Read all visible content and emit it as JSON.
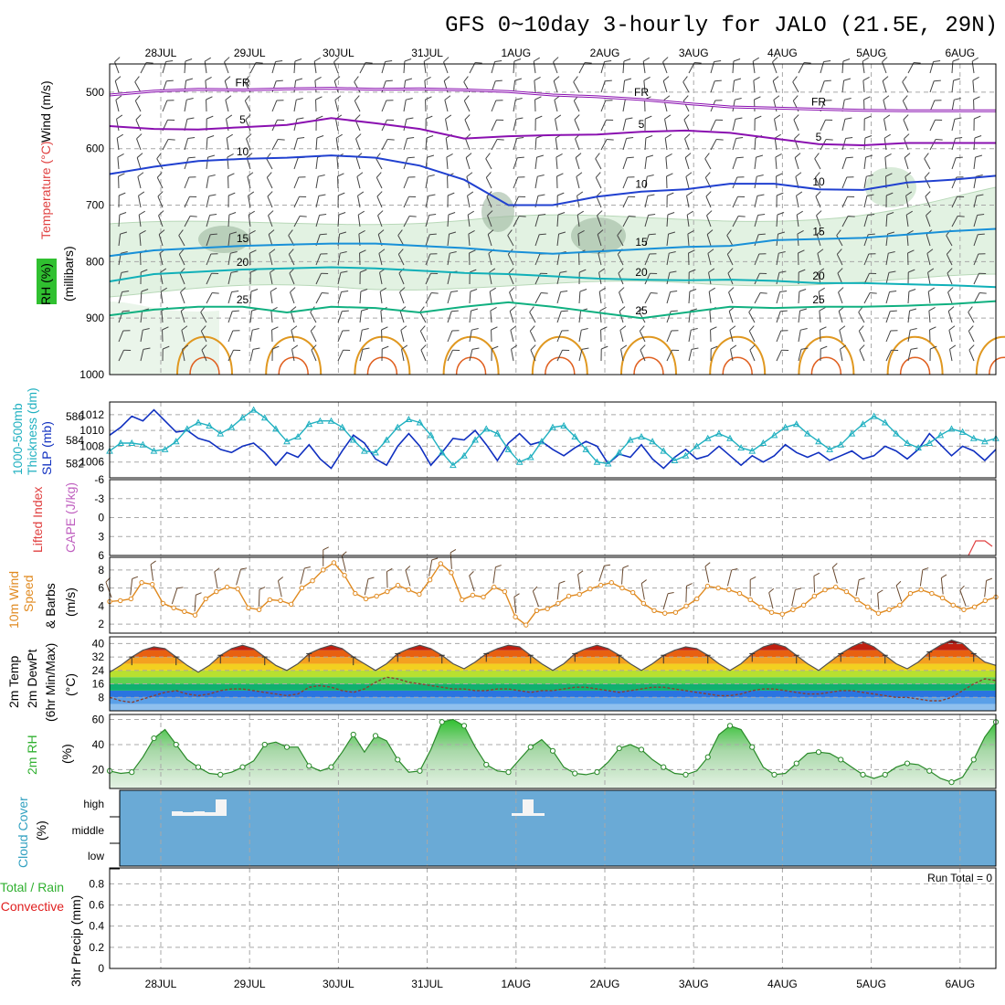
{
  "header": {
    "title": "GFS 0~10day 3-hourly for JALO (21.5E, 29N)"
  },
  "colors": {
    "temp_cold": "#8a10b0",
    "temp_10": "#2040d0",
    "temp_15": "#1890d8",
    "temp_20": "#10b0b8",
    "temp_25": "#10b080",
    "temp_warm": "#e09820",
    "slp": "#1030c0",
    "thickness": "#20b0c0",
    "wind10m": "#e08a20",
    "rh2m": "#40b040",
    "cloud_bg": "#6aaad6",
    "rh_band": "#30c030"
  },
  "chart_data": [
    {
      "panel": "upper_air",
      "type": "line",
      "title": "Temperature (°C) / Wind (m/s) / RH (%)",
      "ylabel": "millibars",
      "ylim": [
        1000,
        450
      ],
      "yticks": [
        "500",
        "600",
        "700",
        "800",
        "900",
        "1000"
      ],
      "xticks": [
        "28JUL",
        "29JUL",
        "30JUL",
        "31JUL",
        "1AUG",
        "2AUG",
        "3AUG",
        "4AUG",
        "5AUG",
        "6AUG"
      ],
      "x_days": [
        0,
        0.5,
        1,
        1.5,
        2,
        2.5,
        3,
        3.5,
        4,
        4.5,
        5,
        5.5,
        6,
        6.5,
        7,
        7.5,
        8,
        8.5,
        9,
        9.5,
        10
      ],
      "series": [
        {
          "name": "FR",
          "label": "FR",
          "color_key": "temp_cold",
          "values": [
            505,
            498,
            495,
            496,
            494,
            493,
            495,
            494,
            496,
            499,
            505,
            508,
            513,
            520,
            526,
            528,
            530,
            532,
            533,
            533,
            533
          ]
        },
        {
          "name": "5",
          "label": "5",
          "color_key": "temp_cold",
          "values": [
            560,
            565,
            566,
            562,
            558,
            546,
            555,
            565,
            582,
            578,
            576,
            575,
            570,
            568,
            572,
            582,
            592,
            594,
            590,
            590,
            590
          ]
        },
        {
          "name": "10",
          "label": "10",
          "color_key": "temp_10",
          "values": [
            645,
            632,
            622,
            618,
            616,
            612,
            616,
            630,
            655,
            700,
            700,
            685,
            676,
            672,
            662,
            662,
            672,
            673,
            660,
            655,
            648
          ]
        },
        {
          "name": "15",
          "label": "15",
          "color_key": "temp_15",
          "values": [
            790,
            780,
            776,
            772,
            770,
            768,
            768,
            772,
            776,
            782,
            786,
            782,
            778,
            774,
            772,
            762,
            760,
            758,
            752,
            746,
            742
          ]
        },
        {
          "name": "20",
          "label": "20",
          "color_key": "temp_20",
          "values": [
            835,
            822,
            818,
            814,
            812,
            810,
            812,
            816,
            820,
            822,
            826,
            830,
            832,
            833,
            832,
            834,
            838,
            838,
            840,
            842,
            845
          ]
        },
        {
          "name": "25",
          "label": "25",
          "color_key": "temp_25",
          "values": [
            895,
            885,
            880,
            880,
            890,
            880,
            882,
            890,
            880,
            872,
            880,
            890,
            900,
            890,
            880,
            882,
            880,
            880,
            878,
            875,
            870
          ]
        }
      ]
    },
    {
      "panel": "slp_thickness",
      "type": "line",
      "ylabel_left": "1000-500mb Thickness (dm)",
      "ylabel_right": "SLP (mb)",
      "yticks_left": [
        "586",
        "584",
        "582"
      ],
      "yticks_right": [
        "1012",
        "1010",
        "1008",
        "1006"
      ],
      "ylim": [
        1004,
        1013.6
      ],
      "series": [
        {
          "name": "SLP",
          "color_key": "slp",
          "values": [
            1009.4,
            1010.4,
            1011.8,
            1011.2,
            1012.6,
            1011.2,
            1009.8,
            1010.0,
            1009.0,
            1008.6,
            1007.6,
            1007.2,
            1008.0,
            1008.4,
            1007.2,
            1005.6,
            1007.2,
            1006.6,
            1008.2,
            1006.4,
            1005.2,
            1007.4,
            1009.4,
            1008.4,
            1006.4,
            1005.6,
            1008.0,
            1009.6,
            1008.0,
            1005.6,
            1007.2,
            1009.0,
            1008.8,
            1010.0,
            1008.2,
            1006.2,
            1008.4,
            1009.6,
            1008.2,
            1008.6,
            1007.6,
            1006.8,
            1007.8,
            1008.6,
            1008.0,
            1005.8,
            1007.0,
            1006.6,
            1008.2,
            1006.4,
            1005.2,
            1006.6,
            1007.6,
            1006.4,
            1006.8,
            1008.0,
            1006.8,
            1005.6,
            1006.8,
            1006.0,
            1006.8,
            1008.2,
            1007.2,
            1006.6,
            1007.2,
            1006.2,
            1006.8,
            1007.4,
            1006.4,
            1006.8,
            1008.0,
            1007.4,
            1006.4,
            1007.6,
            1009.6,
            1008.2,
            1006.8,
            1008.0,
            1007.4,
            1006.2,
            1007.6
          ]
        },
        {
          "name": "Thickness",
          "color_key": "thickness",
          "values": [
            1007.4,
            1008.4,
            1008.4,
            1008.2,
            1007.4,
            1007.6,
            1008.6,
            1010.2,
            1011.0,
            1010.6,
            1009.6,
            1010.4,
            1011.6,
            1012.6,
            1011.6,
            1010.2,
            1008.6,
            1009.2,
            1010.8,
            1011.2,
            1011.2,
            1010.4,
            1008.8,
            1007.4,
            1007.2,
            1008.8,
            1010.4,
            1011.4,
            1011.0,
            1009.4,
            1007.2,
            1005.6,
            1006.8,
            1008.8,
            1010.2,
            1009.6,
            1007.6,
            1006.0,
            1006.6,
            1008.6,
            1010.4,
            1010.6,
            1009.2,
            1007.6,
            1006.0,
            1005.8,
            1007.2,
            1008.8,
            1009.2,
            1008.6,
            1007.4,
            1006.2,
            1006.8,
            1008.0,
            1009.0,
            1009.6,
            1009.0,
            1007.8,
            1007.4,
            1008.4,
            1009.4,
            1010.4,
            1010.8,
            1009.6,
            1008.6,
            1007.6,
            1008.2,
            1009.6,
            1010.8,
            1011.8,
            1011.0,
            1009.6,
            1008.4,
            1007.8,
            1008.4,
            1009.4,
            1010.2,
            1009.8,
            1009.0,
            1008.6,
            1009.0
          ]
        }
      ]
    },
    {
      "panel": "stability",
      "type": "line",
      "ylabel_left": "Lifted Index",
      "ylabel_right": "CAPE (J/kg)",
      "yticks": [
        "-6",
        "-3",
        "0",
        "3",
        "6"
      ],
      "ylim": [
        -6,
        6
      ],
      "series": [
        {
          "name": "CAPE",
          "color_key": "temp_cold",
          "values": [
            0
          ]
        }
      ]
    },
    {
      "panel": "wind_10m",
      "type": "line",
      "ylabel": "10m Wind Speed & Barbs (m/s)",
      "yticks": [
        "8",
        "6",
        "4",
        "2"
      ],
      "ylim": [
        1,
        9.4
      ],
      "series": [
        {
          "name": "10m Wind Speed",
          "color_key": "wind10m",
          "values": [
            4.5,
            4.6,
            4.8,
            6.6,
            6.4,
            4.3,
            3.8,
            3.4,
            3.0,
            4.8,
            5.6,
            6.1,
            5.9,
            3.8,
            3.6,
            4.7,
            4.6,
            4.2,
            6.0,
            6.8,
            8.0,
            8.8,
            7.4,
            5.4,
            4.8,
            5.1,
            5.6,
            6.3,
            5.8,
            5.3,
            6.9,
            8.7,
            7.7,
            4.7,
            5.2,
            5.0,
            6.1,
            5.6,
            2.8,
            1.9,
            3.5,
            3.7,
            4.3,
            5.1,
            5.3,
            5.9,
            6.3,
            6.6,
            6.0,
            5.5,
            4.3,
            3.5,
            3.2,
            3.3,
            4.0,
            4.8,
            6.2,
            6.0,
            5.8,
            5.4,
            4.7,
            3.9,
            3.3,
            3.1,
            3.6,
            4.1,
            5.1,
            5.8,
            6.1,
            5.6,
            4.7,
            3.9,
            3.2,
            3.6,
            4.1,
            5.4,
            5.8,
            5.4,
            4.9,
            4.1,
            3.6,
            3.9,
            4.6,
            5.0
          ]
        }
      ]
    },
    {
      "panel": "temperature_2m",
      "type": "area",
      "ylabel": "2m Temp / 2m DewPt (6hr Min/Max) (°C)",
      "yticks": [
        "40",
        "32",
        "24",
        "16",
        "8"
      ],
      "ylim": [
        0,
        44
      ],
      "series": [
        {
          "name": "2m Temp",
          "values": [
            23,
            27,
            32,
            36,
            38,
            37,
            32,
            27,
            23,
            27,
            33,
            37,
            39,
            37,
            32,
            27,
            24,
            28,
            34,
            37,
            39,
            37,
            32,
            28,
            24,
            28,
            34,
            37,
            39,
            37,
            33,
            28,
            25,
            29,
            34,
            37,
            39,
            38,
            33,
            28,
            24,
            28,
            34,
            37,
            39,
            37,
            33,
            28,
            24,
            28,
            33,
            36,
            38,
            37,
            33,
            28,
            24,
            28,
            34,
            38,
            40,
            38,
            33,
            28,
            24,
            29,
            34,
            38,
            41,
            38,
            33,
            28,
            25,
            29,
            35,
            39,
            42,
            40,
            34,
            29,
            27
          ]
        },
        {
          "name": "2m DewPt",
          "values": [
            8,
            6,
            5,
            7,
            9,
            11,
            12,
            10,
            9,
            10,
            12,
            13,
            13,
            12,
            11,
            10,
            9,
            10,
            14,
            15,
            14,
            12,
            11,
            13,
            17,
            20,
            19,
            17,
            16,
            15,
            14,
            13,
            13,
            12,
            12,
            13,
            13,
            12,
            11,
            12,
            12,
            13,
            14,
            14,
            13,
            12,
            11,
            12,
            13,
            14,
            14,
            13,
            12,
            11,
            10,
            9,
            9,
            10,
            12,
            13,
            13,
            12,
            11,
            10,
            10,
            11,
            12,
            12,
            11,
            10,
            9,
            8,
            8,
            7,
            6,
            6,
            8,
            12,
            16,
            19,
            18
          ]
        }
      ]
    },
    {
      "panel": "rh_2m",
      "type": "area",
      "ylabel": "2m RH (%)",
      "yticks": [
        "60",
        "40",
        "20"
      ],
      "ylim": [
        5,
        64
      ],
      "series": [
        {
          "name": "2m RH",
          "values": [
            19,
            17,
            18,
            30,
            45,
            52,
            40,
            28,
            22,
            17,
            16,
            18,
            22,
            27,
            40,
            42,
            38,
            38,
            23,
            19,
            22,
            34,
            48,
            34,
            47,
            43,
            28,
            18,
            19,
            36,
            58,
            60,
            55,
            38,
            24,
            19,
            18,
            28,
            38,
            44,
            35,
            22,
            17,
            16,
            18,
            26,
            37,
            40,
            36,
            28,
            22,
            17,
            16,
            19,
            30,
            48,
            55,
            52,
            38,
            22,
            16,
            17,
            25,
            33,
            34,
            33,
            28,
            22,
            16,
            13,
            16,
            22,
            25,
            24,
            19,
            13,
            10,
            14,
            28,
            46,
            58
          ]
        }
      ]
    },
    {
      "panel": "cloud_cover",
      "type": "bar",
      "ylabel": "Cloud Cover (%)",
      "yticks": [
        "high",
        "middle",
        "low"
      ],
      "series": [
        {
          "name": "high cloud",
          "values": [
            0,
            0,
            0,
            0,
            0,
            5,
            4,
            5,
            4,
            18,
            0,
            0,
            0,
            0,
            0,
            0,
            0,
            0,
            0,
            0,
            0,
            0,
            0,
            0,
            0,
            0,
            0,
            0,
            0,
            0,
            0,
            0,
            0,
            0,
            0,
            0,
            3,
            18,
            3,
            0,
            0
          ]
        }
      ]
    },
    {
      "panel": "precip_3hr",
      "type": "bar",
      "ylabel": "3hr Precip (mm)",
      "legend_left": "Total / Rain",
      "legend_left2": "Convective",
      "yticks": [
        "0.8",
        "0.6",
        "0.4",
        "0.2",
        "0"
      ],
      "ylim": [
        0,
        0.95
      ],
      "run_total_label": "Run Total = 0",
      "series": [
        {
          "name": "Total",
          "values": [
            0
          ]
        }
      ]
    }
  ],
  "panel_labels": {
    "upper_temp": "Temperature (°C)",
    "upper_wind": "Wind (m/s)",
    "upper_rh": "RH (%)",
    "upper_mb": "(millibars)",
    "slp_thick_a": "1000-500mb",
    "slp_thick_b": "Thickness (dm)",
    "slp": "SLP (mb)",
    "li": "Lifted Index",
    "cape": "CAPE (J/kg)",
    "w10_a": "10m Wind",
    "w10_b": "Speed",
    "w10_c": "& Barbs",
    "w10_d": "(m/s)",
    "t2_a": "2m Temp",
    "t2_b": "2m DewPt",
    "t2_c": "(6hr Min/Max)",
    "t2_d": "(°C)",
    "rh_a": "2m RH",
    "rh_b": "(%)",
    "cc_a": "Cloud Cover",
    "cc_b": "(%)",
    "pr_a": "Total / Rain",
    "pr_b": "Convective",
    "pr_c": "3hr Precip (mm)"
  }
}
